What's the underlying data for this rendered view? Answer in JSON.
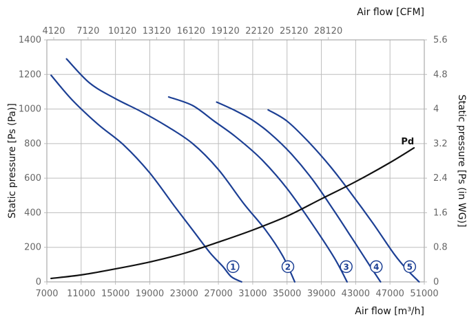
{
  "chart_data": {
    "type": "line",
    "title": "",
    "xlabel": "Air flow [m³/h]",
    "x2label": "Air flow [CFM]",
    "ylabel": "Static pressure [Ps (Pa)]",
    "y2label": "Static pressure [Ps (in WG)]",
    "xlim": [
      7000,
      51000
    ],
    "ylim": [
      0,
      1400
    ],
    "x_ticks": [
      "7000",
      "11000",
      "15000",
      "19000",
      "23000",
      "27000",
      "31000",
      "35000",
      "39000",
      "43000",
      "47000",
      "51000"
    ],
    "x2_ticks": [
      "4120",
      "7120",
      "10120",
      "13120",
      "16120",
      "19120",
      "22120",
      "25120",
      "28120"
    ],
    "y_ticks": [
      "0",
      "200",
      "400",
      "600",
      "800",
      "1000",
      "1200",
      "1400"
    ],
    "y2_ticks": [
      "0",
      "0.8",
      "1.6",
      "2.4",
      "3.2",
      "4",
      "4.8",
      "5.6"
    ],
    "grid": true,
    "series": [
      {
        "name": "1",
        "x": [
          7500,
          10000,
          13000,
          16000,
          19000,
          22000,
          24000,
          26000,
          27500,
          28500,
          29700
        ],
        "y": [
          1195,
          1050,
          910,
          790,
          630,
          430,
          300,
          170,
          90,
          30,
          0
        ]
      },
      {
        "name": "2",
        "x": [
          9300,
          12000,
          15000,
          18000,
          21000,
          24000,
          27000,
          30000,
          32500,
          34500,
          35900
        ],
        "y": [
          1290,
          1150,
          1060,
          985,
          900,
          800,
          650,
          450,
          300,
          150,
          0
        ]
      },
      {
        "name": "3",
        "x": [
          21200,
          24000,
          26500,
          29000,
          32000,
          35000,
          38000,
          40500,
          42000
        ],
        "y": [
          1070,
          1020,
          930,
          840,
          710,
          540,
          330,
          140,
          0
        ]
      },
      {
        "name": "4",
        "x": [
          26800,
          29000,
          31000,
          33000,
          35500,
          38000,
          40500,
          43000,
          44700,
          45900
        ],
        "y": [
          1040,
          990,
          935,
          860,
          740,
          590,
          410,
          220,
          90,
          0
        ]
      },
      {
        "name": "5",
        "x": [
          32800,
          35000,
          37500,
          40000,
          42500,
          45000,
          47500,
          49000,
          50400
        ],
        "y": [
          995,
          930,
          810,
          670,
          510,
          340,
          160,
          70,
          0
        ]
      },
      {
        "name": "Pd",
        "x": [
          7500,
          11000,
          15000,
          19000,
          23000,
          27000,
          31000,
          35000,
          39000,
          43000,
          47000,
          49800
        ],
        "y": [
          20,
          40,
          75,
          115,
          165,
          230,
          300,
          380,
          480,
          580,
          690,
          775
        ]
      }
    ],
    "badges": [
      {
        "label": "1",
        "x": 28700,
        "y": 88
      },
      {
        "label": "2",
        "x": 35100,
        "y": 88
      },
      {
        "label": "3",
        "x": 41900,
        "y": 88
      },
      {
        "label": "4",
        "x": 45400,
        "y": 88
      },
      {
        "label": "5",
        "x": 49300,
        "y": 88
      }
    ],
    "pd_label": {
      "text": "Pd",
      "x": 48300,
      "y": 795
    },
    "colors": {
      "fan_curves": "#1c3f94",
      "pd_curve": "#111111",
      "grid": "#bdbdbd",
      "ticks": "#666666"
    }
  }
}
